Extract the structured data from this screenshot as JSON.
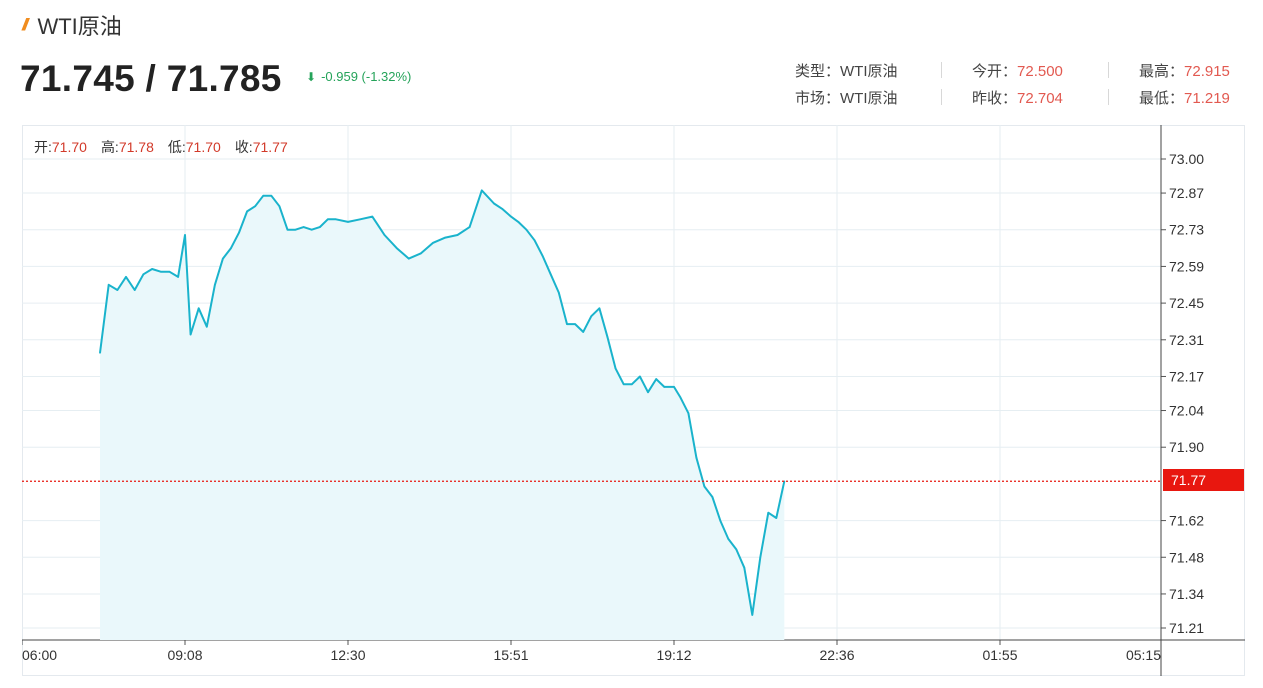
{
  "header": {
    "title_mark": "//",
    "title": "WTI原油",
    "price": "71.745 / 71.785",
    "change_arrow": "⬇",
    "change": "-0.959 (-1.32%)"
  },
  "stats": {
    "type_label": "类型：",
    "type_value": "WTI原油",
    "market_label": "市场：",
    "market_value": "WTI原油",
    "open_label": "今开：",
    "open_value": "72.500",
    "prev_close_label": "昨收：",
    "prev_close_value": "72.704",
    "high_label": "最高：",
    "high_value": "72.915",
    "low_label": "最低：",
    "low_value": "71.219"
  },
  "ohlc": {
    "open_label": "开:",
    "open": "71.70",
    "high_label": "高:",
    "high": "71.78",
    "low_label": "低:",
    "low": "71.70",
    "close_label": "收:",
    "close": "71.77"
  },
  "colors": {
    "line": "#1ab3cc",
    "fill": "#eaf8fb",
    "up": "#e25950",
    "down": "#25a35a",
    "accent": "#f08c1e",
    "last_price": "#e8170f",
    "grid": "#e6eef2"
  },
  "chart_data": {
    "type": "area",
    "title": "",
    "xlabel": "",
    "ylabel": "",
    "x_ticks": [
      "06:00",
      "09:08",
      "12:30",
      "15:51",
      "19:12",
      "22:36",
      "01:55",
      "05:15"
    ],
    "y_ticks": [
      "73.00",
      "72.87",
      "72.73",
      "72.59",
      "72.45",
      "72.31",
      "72.17",
      "72.04",
      "71.90",
      "71.62",
      "71.48",
      "71.34",
      "71.21"
    ],
    "ylim": [
      71.18,
      73.05
    ],
    "last_price": 71.77,
    "last_price_label": "71.77",
    "grid": true,
    "series": [
      {
        "x": [
          "07:30",
          "07:40",
          "07:50",
          "08:00",
          "08:10",
          "08:20",
          "08:30",
          "08:40",
          "08:50",
          "09:00",
          "09:08",
          "09:15",
          "09:25",
          "09:35",
          "09:45",
          "09:55",
          "10:05",
          "10:15",
          "10:25",
          "10:35",
          "10:45",
          "10:55",
          "11:05",
          "11:15",
          "11:25",
          "11:35",
          "11:45",
          "11:55",
          "12:05",
          "12:15",
          "12:30",
          "12:45",
          "13:00",
          "13:15",
          "13:30",
          "13:45",
          "14:00",
          "14:15",
          "14:30",
          "14:45",
          "15:00",
          "15:15",
          "15:30",
          "15:40",
          "15:51",
          "16:00",
          "16:10",
          "16:20",
          "16:30",
          "16:40",
          "16:50",
          "17:00",
          "17:10",
          "17:20",
          "17:30",
          "17:40",
          "17:50",
          "18:00",
          "18:10",
          "18:20",
          "18:30",
          "18:40",
          "18:50",
          "19:00",
          "19:12",
          "19:20",
          "19:30",
          "19:40",
          "19:50",
          "20:00",
          "20:10",
          "20:20",
          "20:30",
          "20:40",
          "20:50",
          "21:00",
          "21:10",
          "21:20",
          "21:30"
        ],
        "values": [
          72.26,
          72.52,
          72.5,
          72.55,
          72.5,
          72.56,
          72.58,
          72.57,
          72.57,
          72.55,
          72.71,
          72.33,
          72.43,
          72.36,
          72.52,
          72.62,
          72.66,
          72.72,
          72.8,
          72.82,
          72.86,
          72.86,
          72.82,
          72.73,
          72.73,
          72.74,
          72.73,
          72.74,
          72.77,
          72.77,
          72.76,
          72.77,
          72.78,
          72.71,
          72.66,
          72.62,
          72.64,
          72.68,
          72.7,
          72.71,
          72.74,
          72.88,
          72.83,
          72.81,
          72.78,
          72.76,
          72.73,
          72.69,
          72.63,
          72.56,
          72.49,
          72.37,
          72.37,
          72.34,
          72.4,
          72.43,
          72.32,
          72.2,
          72.14,
          72.14,
          72.17,
          72.11,
          72.16,
          72.13,
          72.13,
          72.09,
          72.03,
          71.86,
          71.75,
          71.71,
          71.62,
          71.55,
          71.51,
          71.44,
          71.26,
          71.48,
          71.65,
          71.63,
          71.77
        ]
      }
    ]
  }
}
